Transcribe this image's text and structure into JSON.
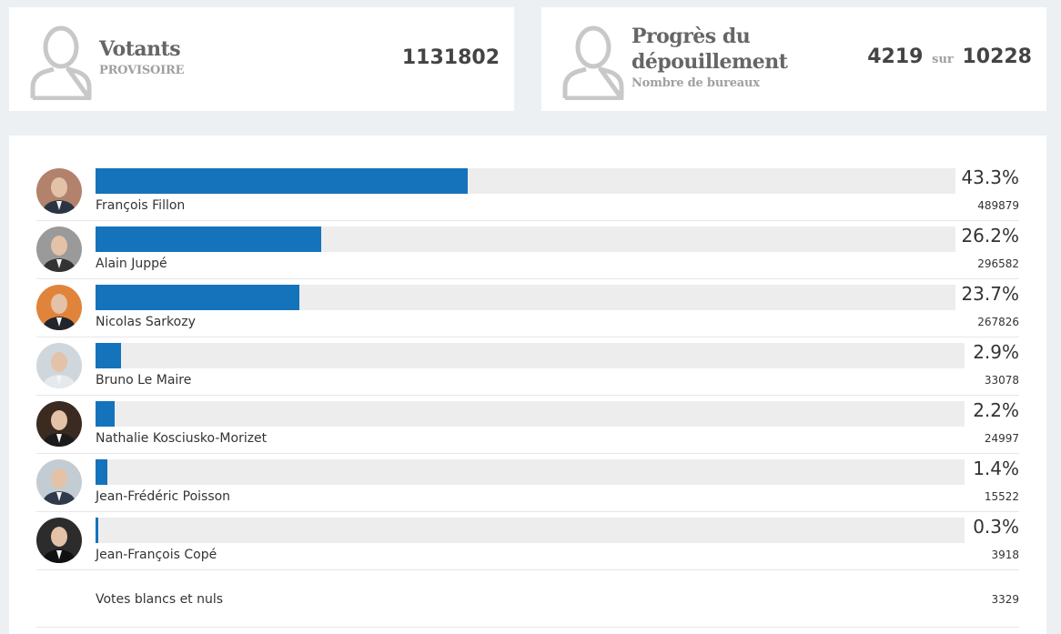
{
  "voters": {
    "title": "Votants",
    "subtitle": "PROVISOIRE",
    "value": "1131802"
  },
  "progress": {
    "title_line1": "Progrès du",
    "title_line2": "dépouillement",
    "subtitle": "Nombre de bureaux",
    "counted": "4219",
    "separator": "sur",
    "total": "10228"
  },
  "candidates": [
    {
      "name": "François Fillon",
      "percent_label": "43.3%",
      "percent": 43.3,
      "votes": "489879",
      "avatar_bg": "#b2826d",
      "suit": "#2b3442"
    },
    {
      "name": "Alain Juppé",
      "percent_label": "26.2%",
      "percent": 26.2,
      "votes": "296582",
      "avatar_bg": "#9a9a9a",
      "suit": "#333333"
    },
    {
      "name": "Nicolas Sarkozy",
      "percent_label": "23.7%",
      "percent": 23.7,
      "votes": "267826",
      "avatar_bg": "#e0843c",
      "suit": "#22252b"
    },
    {
      "name": "Bruno Le Maire",
      "percent_label": "2.9%",
      "percent": 2.9,
      "votes": "33078",
      "avatar_bg": "#cfd6dc",
      "suit": "#e6e9ec"
    },
    {
      "name": "Nathalie Kosciusko-Morizet",
      "percent_label": "2.2%",
      "percent": 2.2,
      "votes": "24997",
      "avatar_bg": "#3a2a20",
      "suit": "#1b1b1b"
    },
    {
      "name": "Jean-Frédéric Poisson",
      "percent_label": "1.4%",
      "percent": 1.4,
      "votes": "15522",
      "avatar_bg": "#c4ccd3",
      "suit": "#2f3a4a"
    },
    {
      "name": "Jean-François Copé",
      "percent_label": "0.3%",
      "percent": 0.3,
      "votes": "3918",
      "avatar_bg": "#2c2c2c",
      "suit": "#111111"
    }
  ],
  "blank": {
    "label": "Votes blancs et nuls",
    "votes": "3329"
  },
  "colors": {
    "bar": "#1473bb",
    "track": "#ededed",
    "icon": "#c8c8c8"
  }
}
